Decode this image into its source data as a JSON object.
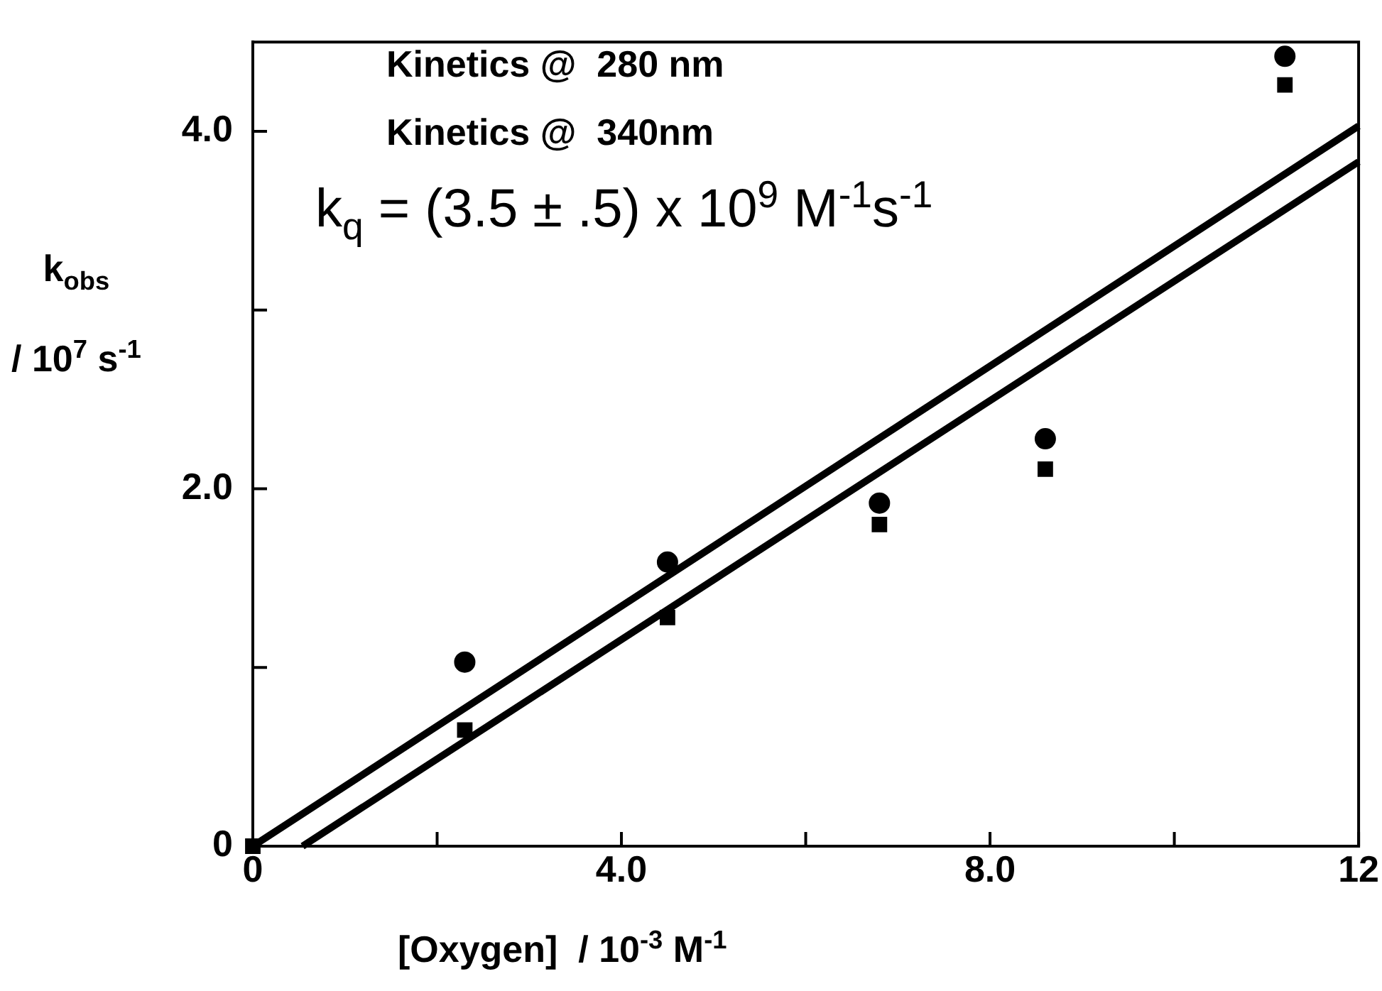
{
  "chart_data": {
    "type": "scatter",
    "xlabel": "[Oxygen]  / 10$^{-3}$ M$^{-1}$",
    "ylabel": "k$_{obs}$\n/ 10$^{7}$ s$^{-1}$",
    "annotations": [
      "Kinetics @  280 nm",
      "Kinetics @  340nm",
      "k$_{q}$ = (3.5 ± .5) x 10$^{9}$ M$^{-1}$s$^{-1}$"
    ],
    "series": [
      {
        "type": "scatter",
        "marker": "circle",
        "color": "#000000",
        "x": [
          2.3,
          4.5,
          6.8,
          8.6,
          11.2
        ],
        "values": [
          1.03,
          1.59,
          1.92,
          2.28,
          4.42
        ]
      },
      {
        "type": "scatter",
        "marker": "square",
        "color": "#000000",
        "x": [
          0,
          2.3,
          4.5,
          6.8,
          8.6,
          11.2
        ],
        "values": [
          0,
          0.65,
          1.28,
          1.8,
          2.11,
          4.26
        ]
      },
      {
        "type": "line",
        "color": "#000000",
        "line_style": "solid",
        "marker": "none",
        "x": [
          0,
          12
        ],
        "values": [
          0,
          4.03
        ]
      },
      {
        "type": "line",
        "color": "#000000",
        "line_style": "solid",
        "marker": "none",
        "x": [
          0.54,
          12
        ],
        "values": [
          0,
          3.83
        ]
      }
    ],
    "xlim": [
      0,
      12
    ],
    "ylim": [
      0,
      4.5
    ],
    "xticks": [
      0,
      {
        "value": 2,
        "label": null
      },
      {
        "value": 4,
        "label": "4.0"
      },
      {
        "value": 6,
        "label": null
      },
      {
        "value": 8,
        "label": "8.0"
      },
      {
        "value": 10,
        "label": null
      },
      12
    ],
    "yticks": [
      0,
      {
        "value": 1,
        "label": null
      },
      {
        "value": 2,
        "label": "2.0"
      },
      {
        "value": 3,
        "label": null
      },
      {
        "value": 4,
        "label": "4.0"
      }
    ],
    "grid": false,
    "legend": false
  }
}
